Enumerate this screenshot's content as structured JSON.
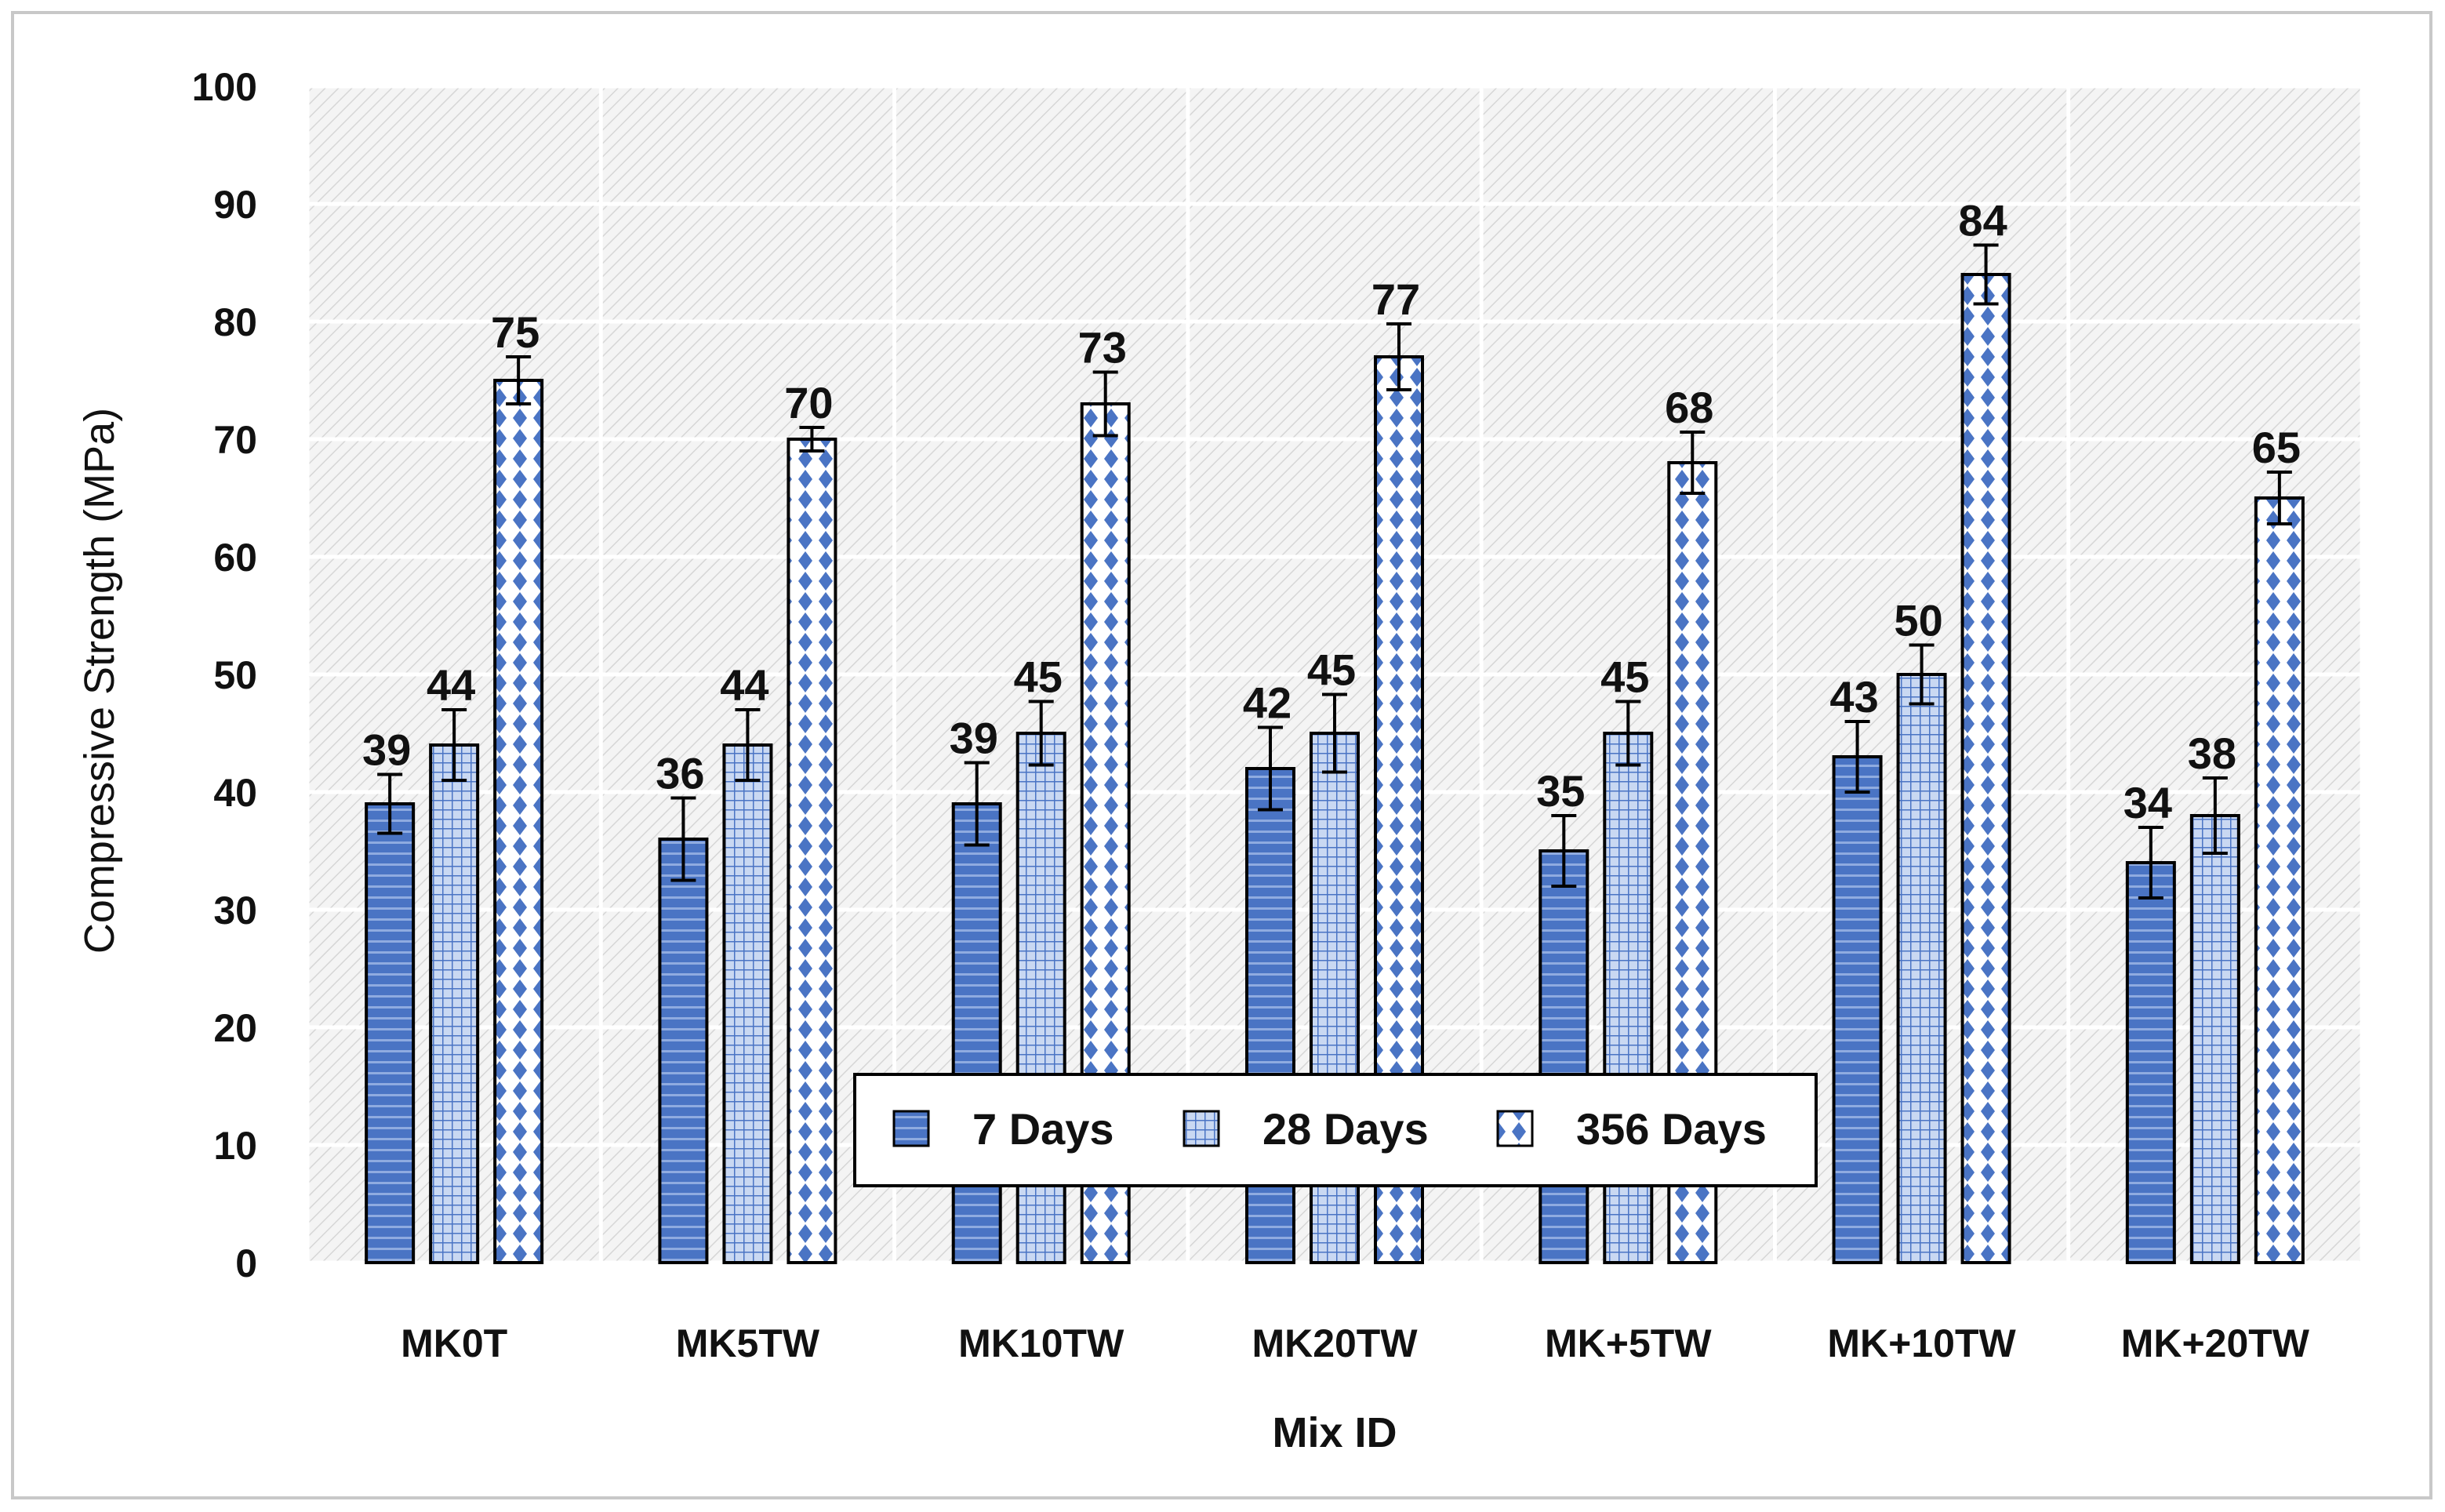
{
  "chart_data": {
    "type": "bar",
    "title": "",
    "xlabel": "Mix ID",
    "ylabel": "Compressive Strength (MPa)",
    "ylim": [
      0,
      100
    ],
    "yticks": [
      0,
      10,
      20,
      30,
      40,
      50,
      60,
      70,
      80,
      90,
      100
    ],
    "grid": true,
    "legend_position": "bottom-center",
    "error_bars": true,
    "categories": [
      "MK0T",
      "MK5TW",
      "MK10TW",
      "MK20TW",
      "MK+5TW",
      "MK+10TW",
      "MK+20TW"
    ],
    "series": [
      {
        "name": "7 Days",
        "values": [
          39,
          36,
          39,
          42,
          35,
          43,
          34
        ],
        "errors": [
          2.5,
          3.5,
          3.5,
          3.5,
          3,
          3,
          3
        ]
      },
      {
        "name": "28 Days",
        "values": [
          44,
          44,
          45,
          45,
          45,
          50,
          38
        ],
        "errors": [
          3,
          3,
          2.7,
          3.3,
          2.7,
          2.5,
          3.2
        ]
      },
      {
        "name": "356 Days",
        "values": [
          75,
          70,
          73,
          77,
          68,
          84,
          65
        ],
        "errors": [
          2,
          1,
          2.7,
          2.8,
          2.6,
          2.5,
          2.2
        ]
      }
    ],
    "colors": {
      "bar_fill": "#4a74c4",
      "bar_light": "#c9d8f2",
      "bar_outline": "#000000",
      "plot_bg": "#f2f2f2",
      "hatch": "#d4d4d4",
      "grid": "#ffffff"
    }
  }
}
